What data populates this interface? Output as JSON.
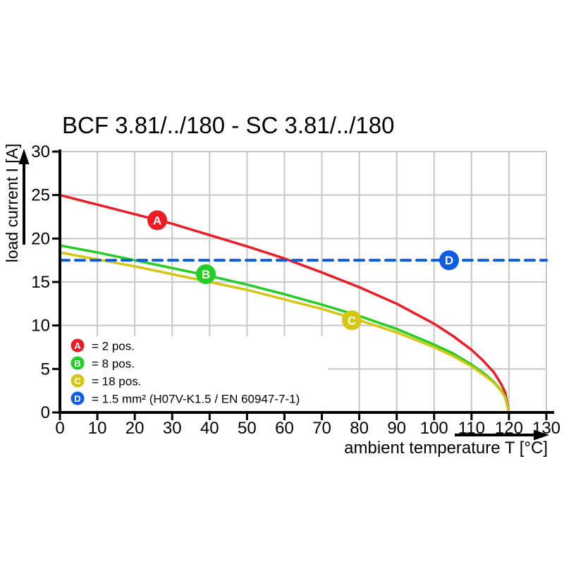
{
  "page": {
    "background": "#ffffff"
  },
  "chart_data": {
    "type": "line",
    "title": "BCF 3.81/../180 - SC 3.81/../180",
    "xlabel": "ambient temperature T [°C]",
    "ylabel": "load current I [A]",
    "xlim": [
      0,
      130
    ],
    "ylim": [
      0,
      30
    ],
    "xticks": [
      0,
      10,
      20,
      30,
      40,
      50,
      60,
      70,
      80,
      90,
      100,
      110,
      120,
      130
    ],
    "yticks": [
      0,
      5,
      10,
      15,
      20,
      25,
      30
    ],
    "grid": true,
    "grid_color": "#c8c8c8",
    "axis_color": "#000000",
    "legend_position": "inside-bottom-left",
    "series": [
      {
        "letter": "A",
        "legend_label": "= 2 pos.",
        "color": "#ed1c24",
        "style": "solid",
        "points": [
          [
            0,
            25
          ],
          [
            10,
            23.9
          ],
          [
            20,
            22.8
          ],
          [
            30,
            21.7
          ],
          [
            40,
            20.4
          ],
          [
            50,
            19.1
          ],
          [
            60,
            17.7
          ],
          [
            70,
            16.1
          ],
          [
            80,
            14.4
          ],
          [
            90,
            12.5
          ],
          [
            100,
            10.2
          ],
          [
            105,
            8.8
          ],
          [
            110,
            7.2
          ],
          [
            113,
            6.0
          ],
          [
            116,
            4.6
          ],
          [
            118,
            3.2
          ],
          [
            119,
            2.3
          ],
          [
            120,
            0
          ]
        ],
        "marker_at": [
          26,
          22.1
        ]
      },
      {
        "letter": "B",
        "legend_label": "= 8 pos.",
        "color": "#23ce23",
        "style": "solid",
        "points": [
          [
            0,
            19.2
          ],
          [
            10,
            18.4
          ],
          [
            20,
            17.5
          ],
          [
            30,
            16.6
          ],
          [
            40,
            15.7
          ],
          [
            50,
            14.7
          ],
          [
            60,
            13.6
          ],
          [
            70,
            12.4
          ],
          [
            80,
            11.1
          ],
          [
            90,
            9.6
          ],
          [
            100,
            7.8
          ],
          [
            105,
            6.8
          ],
          [
            110,
            5.5
          ],
          [
            113,
            4.6
          ],
          [
            116,
            3.5
          ],
          [
            118,
            2.5
          ],
          [
            119,
            1.8
          ],
          [
            120,
            0
          ]
        ],
        "marker_at": [
          39,
          15.9
        ]
      },
      {
        "letter": "C",
        "legend_label": "= 18 pos.",
        "color": "#d4c613",
        "style": "solid",
        "points": [
          [
            0,
            18.4
          ],
          [
            10,
            17.6
          ],
          [
            20,
            16.8
          ],
          [
            30,
            15.9
          ],
          [
            40,
            15.0
          ],
          [
            50,
            14.1
          ],
          [
            60,
            13.0
          ],
          [
            70,
            11.9
          ],
          [
            80,
            10.6
          ],
          [
            90,
            9.2
          ],
          [
            100,
            7.5
          ],
          [
            105,
            6.5
          ],
          [
            110,
            5.3
          ],
          [
            113,
            4.4
          ],
          [
            116,
            3.4
          ],
          [
            118,
            2.4
          ],
          [
            119,
            1.7
          ],
          [
            120,
            0
          ]
        ],
        "marker_at": [
          78,
          10.6
        ]
      },
      {
        "letter": "D",
        "legend_label": "= 1.5 mm² (H07V-K1.5 / EN 60947-7-1)",
        "color": "#0d5ce1",
        "style": "dashed",
        "points": [
          [
            0,
            17.5
          ],
          [
            130,
            17.5
          ]
        ],
        "marker_at": [
          104,
          17.5
        ]
      }
    ]
  }
}
